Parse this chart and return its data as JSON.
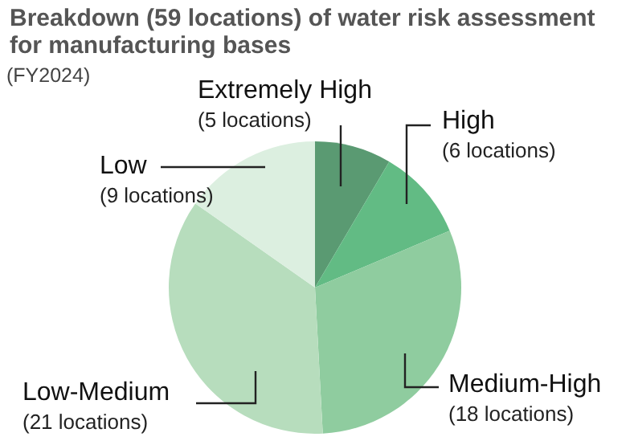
{
  "chart_data": {
    "type": "pie",
    "title": "Breakdown (59 locations) of water risk assessment for manufacturing bases",
    "subtitle": "(FY2024)",
    "categories": [
      "Extremely High",
      "High",
      "Medium-High",
      "Low-Medium",
      "Low"
    ],
    "values": [
      5,
      6,
      18,
      21,
      9
    ],
    "value_labels": [
      "(5 locations)",
      "(6 locations)",
      "(18 locations)",
      "(21 locations)",
      "(9 locations)"
    ],
    "colors": [
      "#5a9a72",
      "#62bb84",
      "#8fcc9f",
      "#b7ddbd",
      "#dcefe0"
    ]
  }
}
